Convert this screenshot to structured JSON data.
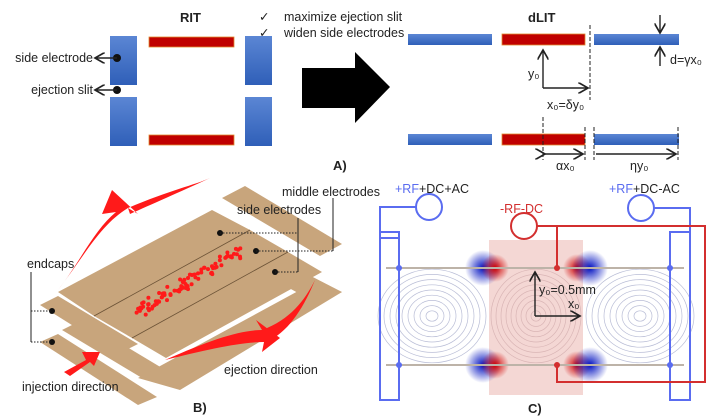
{
  "panelA": {
    "label": "A)",
    "rit_title": "RIT",
    "dlit_title": "dLIT",
    "checklist": [
      {
        "mark": "✓",
        "text": "maximize ejection slit"
      },
      {
        "mark": "✓",
        "text": "widen side electrodes"
      }
    ],
    "side_electrode": "side electrode",
    "ejection_slit": "ejection slit",
    "y0": "y₀",
    "x0": "x₀=δy₀",
    "d": "d=γx₀",
    "alpha": "αx₀",
    "eta": "ηy₀",
    "colors": {
      "side": "#3a6cc4",
      "middle": "#c00000"
    }
  },
  "panelB": {
    "label": "B)",
    "middle_electrodes": "middle electrodes",
    "side_electrodes": "side electrodes",
    "endcaps": "endcaps",
    "injection": "injection direction",
    "ejection": "ejection direction",
    "colors": {
      "plate": "#c8a57c",
      "ions": "#ff1a1a",
      "arrow": "#ff1a1a"
    }
  },
  "panelC": {
    "label": "C)",
    "left_source": {
      "rf": "+RF",
      "rest": "+DC+AC"
    },
    "middle_source": "-RF-DC",
    "right_source": {
      "rf": "+RF",
      "rest": "+DC-AC"
    },
    "y0": "y₀=0.5mm",
    "x0": "x₀",
    "colors": {
      "positive": "#5a6cf0",
      "negative": "#d32f2f"
    }
  }
}
